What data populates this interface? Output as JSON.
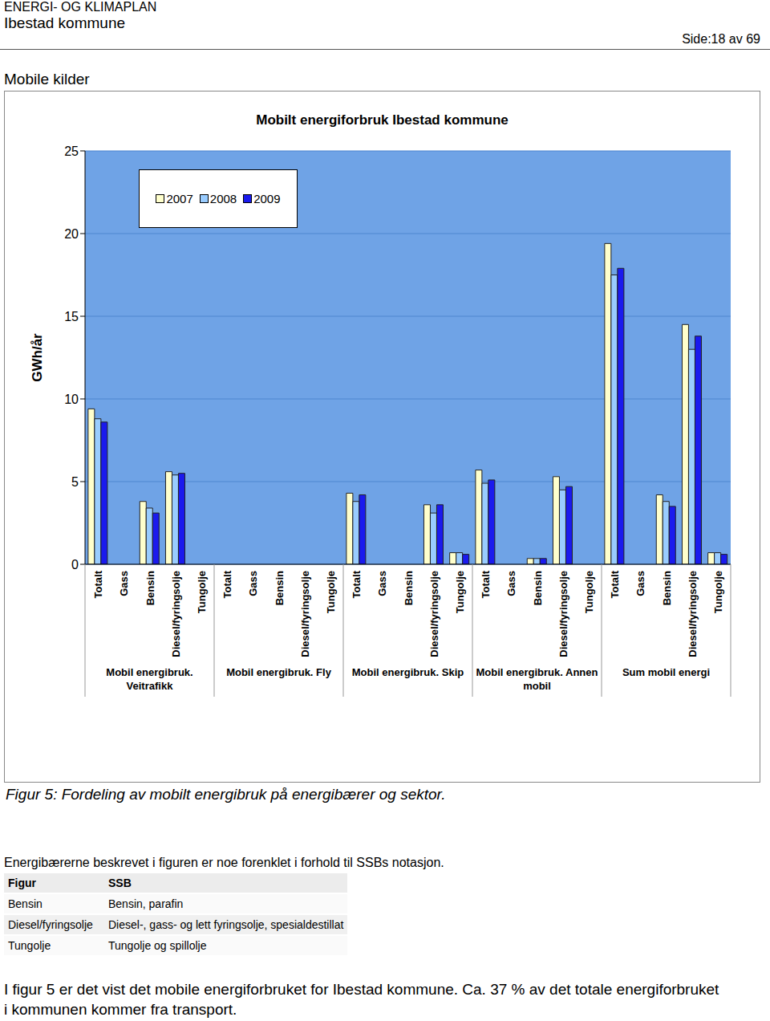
{
  "header": {
    "title": "ENERGI- OG KLIMAPLAN",
    "subtitle": "Ibestad kommune",
    "page": "Side:18 av 69"
  },
  "section": "Mobile kilder",
  "chart_data": {
    "type": "bar",
    "title": "Mobilt energiforbruk Ibestad kommune",
    "y_label": "GWh/år",
    "categories": [
      "Totalt",
      "Gass",
      "Bensin",
      "Diesel/fyringsolje",
      "Tungolje",
      "Totalt",
      "Gass",
      "Bensin",
      "Diesel/fyringsolje",
      "Tungolje",
      "Totalt",
      "Gass",
      "Bensin",
      "Diesel/fyringsolje",
      "Tungolje",
      "Totalt",
      "Gass",
      "Bensin",
      "Diesel/fyringsolje",
      "Tungolje",
      "Totalt",
      "Gass",
      "Bensin",
      "Diesel/fyringsolje",
      "Tungolje"
    ],
    "group_labels": [
      "Mobil energibruk. Veitrafikk",
      "Mobil energibruk. Fly",
      "Mobil energibruk. Skip",
      "Mobil energibruk. Annen mobil",
      "Sum mobil energi"
    ],
    "series": [
      {
        "name": "2007",
        "color": "#ffffcc",
        "values": [
          9.4,
          0,
          3.8,
          5.6,
          0,
          0,
          0,
          0,
          0,
          0,
          4.3,
          0,
          0,
          3.6,
          0.7,
          5.7,
          0,
          0.35,
          5.3,
          0,
          19.4,
          0,
          4.2,
          14.5,
          0.7
        ]
      },
      {
        "name": "2008",
        "color": "#99ccff",
        "values": [
          8.8,
          0,
          3.4,
          5.4,
          0,
          0,
          0,
          0,
          0,
          0,
          3.8,
          0,
          0,
          3.1,
          0.7,
          4.9,
          0,
          0.35,
          4.5,
          0,
          17.5,
          0,
          3.8,
          13.0,
          0.7
        ]
      },
      {
        "name": "2009",
        "color": "#1a1aee",
        "values": [
          8.6,
          0,
          3.1,
          5.5,
          0,
          0,
          0,
          0,
          0,
          0,
          4.2,
          0,
          0,
          3.6,
          0.6,
          5.1,
          0,
          0.35,
          4.7,
          0,
          17.9,
          0,
          3.5,
          13.8,
          0.6
        ]
      }
    ],
    "ylim": [
      0,
      25
    ],
    "yticks": [
      0,
      5,
      10,
      15,
      20,
      25
    ],
    "grid": true,
    "legend": "upper left"
  },
  "caption": "Figur 5: Fordeling av mobilt energibruk på energibærer og sektor.",
  "intro": "Energibærerne beskrevet i figuren er noe forenklet i forhold til SSBs notasjon.",
  "table": {
    "columns": [
      "Figur",
      "SSB"
    ],
    "rows": [
      [
        "Bensin",
        "Bensin, parafin"
      ],
      [
        "Diesel/fyringsolje",
        "Diesel-, gass- og lett fyringsolje, spesialdestillat"
      ],
      [
        "Tungolje",
        "Tungolje og spillolje"
      ]
    ]
  },
  "text": "I figur 5 er det vist det mobile energiforbruket for Ibestad kommune. Ca. 37 % av det totale energiforbruket i kommunen kommer fra transport."
}
